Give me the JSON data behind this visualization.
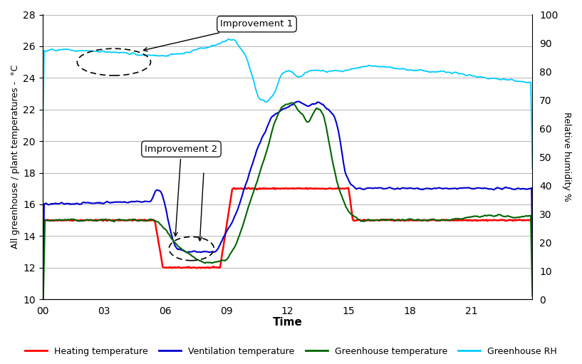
{
  "xlabel": "Time",
  "ylabel_left": "All greenhouse / plant temperatures -  °C",
  "ylabel_right": "Relative humidity %",
  "xlim": [
    0,
    24
  ],
  "ylim_left": [
    10,
    28
  ],
  "ylim_right": [
    0,
    100
  ],
  "xticks": [
    0,
    3,
    6,
    9,
    12,
    15,
    18,
    21,
    24
  ],
  "xticklabels": [
    "00",
    "03",
    "06",
    "09",
    "12",
    "15",
    "18",
    "21",
    ""
  ],
  "yticks_left": [
    10,
    12,
    14,
    16,
    18,
    20,
    22,
    24,
    26,
    28
  ],
  "yticks_right": [
    0,
    10,
    20,
    30,
    40,
    50,
    60,
    70,
    80,
    90,
    100
  ],
  "colors": {
    "heating": "#ff0000",
    "ventilation": "#0000cc",
    "greenhouse": "#006400",
    "rh": "#00ccff"
  },
  "background_color": "#ffffff",
  "grid_color": "#999999"
}
